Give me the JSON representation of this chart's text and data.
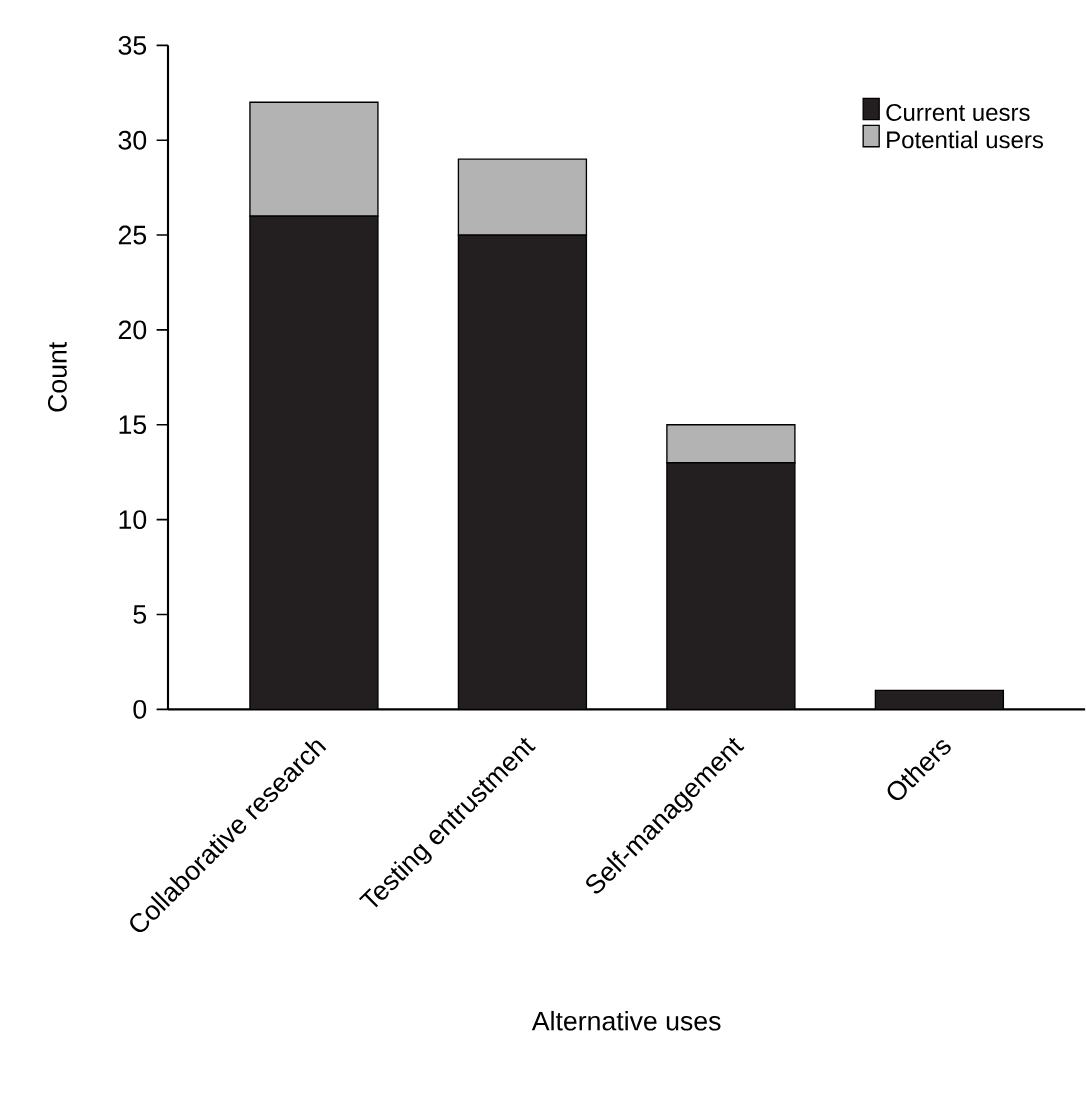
{
  "chart_data": {
    "type": "bar",
    "stacked": true,
    "xlabel": "Alternative uses",
    "ylabel": "Count",
    "categories": [
      "Collaborative research",
      "Testing entrustment",
      "Self-management",
      "Others"
    ],
    "series": [
      {
        "name": "Current uesrs",
        "color": "#231f20",
        "values": [
          26,
          25,
          13,
          1
        ]
      },
      {
        "name": "Potential users",
        "color": "#b3b3b3",
        "values": [
          6,
          4,
          2,
          0
        ]
      }
    ],
    "ylim": [
      0,
      35
    ],
    "yticks": [
      0,
      5,
      10,
      15,
      20,
      25,
      30,
      35
    ],
    "legend": "top right",
    "grid": false
  }
}
